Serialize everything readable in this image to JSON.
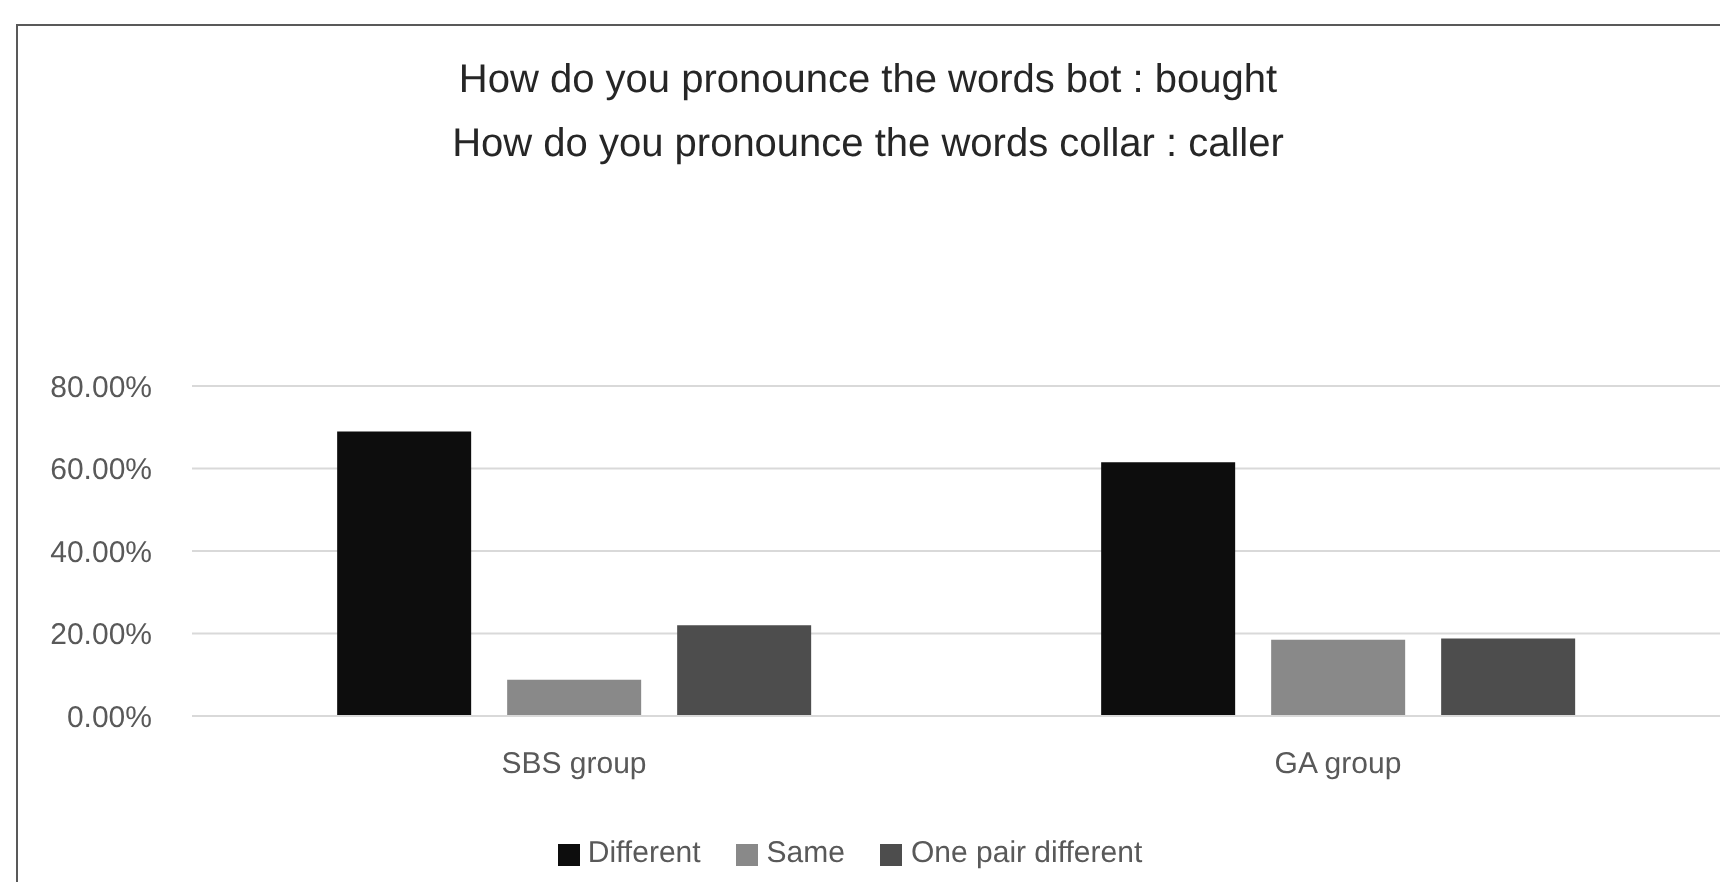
{
  "chart_data": {
    "type": "bar",
    "title": "How do you pronounce the words bot : bought\nHow do you pronounce the words collar : caller",
    "categories": [
      "SBS group",
      "GA group"
    ],
    "series": [
      {
        "name": "Different",
        "color": "#0d0d0d",
        "values": [
          69,
          61.5
        ]
      },
      {
        "name": "Same",
        "color": "#898989",
        "values": [
          8.8,
          18.5
        ]
      },
      {
        "name": "One pair different",
        "color": "#4d4d4d",
        "values": [
          22,
          18.8
        ]
      }
    ],
    "ylim": [
      0,
      80
    ],
    "yticks": [
      {
        "value": 0,
        "label": "0.00%"
      },
      {
        "value": 20,
        "label": "20.00%"
      },
      {
        "value": 40,
        "label": "40.00%"
      },
      {
        "value": 60,
        "label": "60.00%"
      },
      {
        "value": 80,
        "label": "80.00%"
      }
    ],
    "grid": "y",
    "legend": "bottom"
  }
}
